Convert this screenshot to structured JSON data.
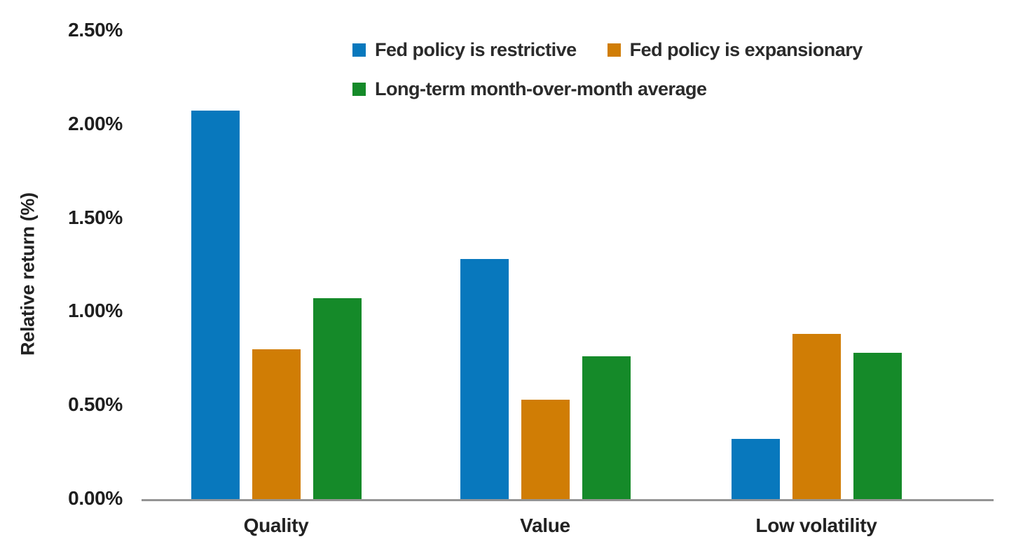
{
  "chart_data": {
    "type": "bar",
    "title": "",
    "categories": [
      "Quality",
      "Value",
      "Low volatility"
    ],
    "series": [
      {
        "name": "Fed policy is restrictive",
        "color": "#0878bd",
        "values": [
          2.07,
          1.28,
          0.32
        ]
      },
      {
        "name": "Fed policy is expansionary",
        "color": "#d07d05",
        "values": [
          0.8,
          0.53,
          0.88
        ]
      },
      {
        "name": "Long-term month-over-month average",
        "color": "#158a29",
        "values": [
          1.07,
          0.76,
          0.78
        ]
      }
    ],
    "xlabel": "",
    "ylabel": "Relative return (%)",
    "y_ticks": [
      "2.50%",
      "2.00%",
      "1.50%",
      "1.00%",
      "0.50%",
      "0.00%"
    ],
    "ylim": [
      0,
      2.5
    ],
    "grid": false,
    "legend_position": "top",
    "legend_rows": [
      [
        0,
        1
      ],
      [
        2
      ]
    ],
    "value_format": "percent",
    "colors": {
      "restrictive_blue": "#0878bd",
      "expansionary_orange": "#d07d05",
      "average_green": "#158a29",
      "axis_line": "#949494",
      "text": "#262626"
    }
  }
}
